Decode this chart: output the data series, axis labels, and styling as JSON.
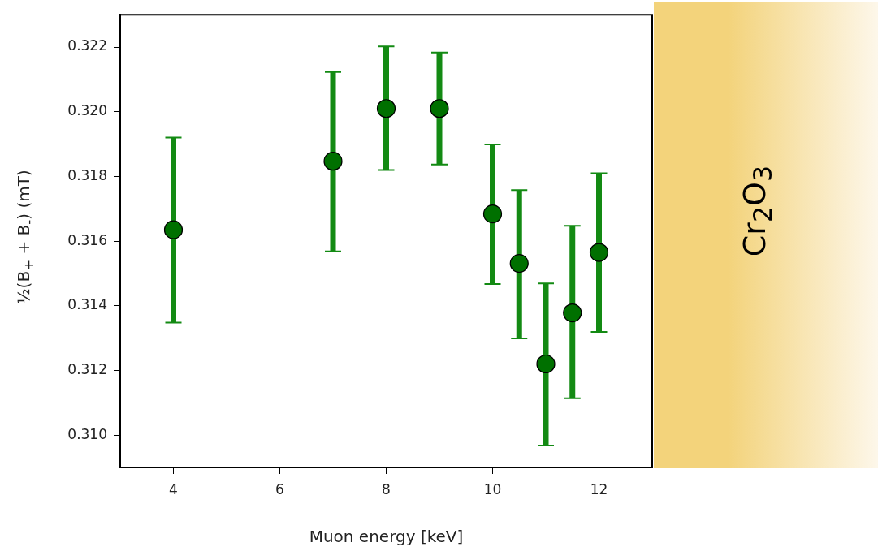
{
  "chart_data": {
    "type": "scatter",
    "xlabel": "Muon energy [keV]",
    "ylabel": "½(B$_{+}$ + B$_{-}$) (mT)",
    "x": [
      4,
      7,
      8,
      9,
      10,
      10.5,
      11,
      11.5,
      12
    ],
    "series": [
      {
        "color": "#007000",
        "values": [
          0.31635,
          0.31847,
          0.3201,
          0.3201,
          0.31684,
          0.31531,
          0.3122,
          0.31378,
          0.31565
        ],
        "errors": [
          [
            0.31348,
            0.3192
          ],
          [
            0.31568,
            0.32123
          ],
          [
            0.3182,
            0.32202
          ],
          [
            0.31837,
            0.32183
          ],
          [
            0.31467,
            0.31899
          ],
          [
            0.31299,
            0.31758
          ],
          [
            0.30968,
            0.31469
          ],
          [
            0.31114,
            0.31647
          ],
          [
            0.31319,
            0.3181
          ]
        ]
      }
    ],
    "xlim": [
      3,
      13
    ],
    "xticks": [
      4,
      6,
      8,
      10,
      12
    ],
    "ylim": [
      0.309,
      0.323
    ],
    "yticks": [
      {
        "value": 0.31,
        "label": "0.310"
      },
      {
        "value": 0.312,
        "label": "0.312"
      },
      {
        "value": 0.314,
        "label": "0.314"
      },
      {
        "value": 0.316,
        "label": "0.316"
      },
      {
        "value": 0.318,
        "label": "0.318"
      },
      {
        "value": 0.32,
        "label": "0.320"
      },
      {
        "value": 0.322,
        "label": "0.322"
      }
    ],
    "marker": "circle",
    "grid": false,
    "legend": false,
    "annotations": [
      "Cr$_{2}$O$_{3}$"
    ]
  }
}
